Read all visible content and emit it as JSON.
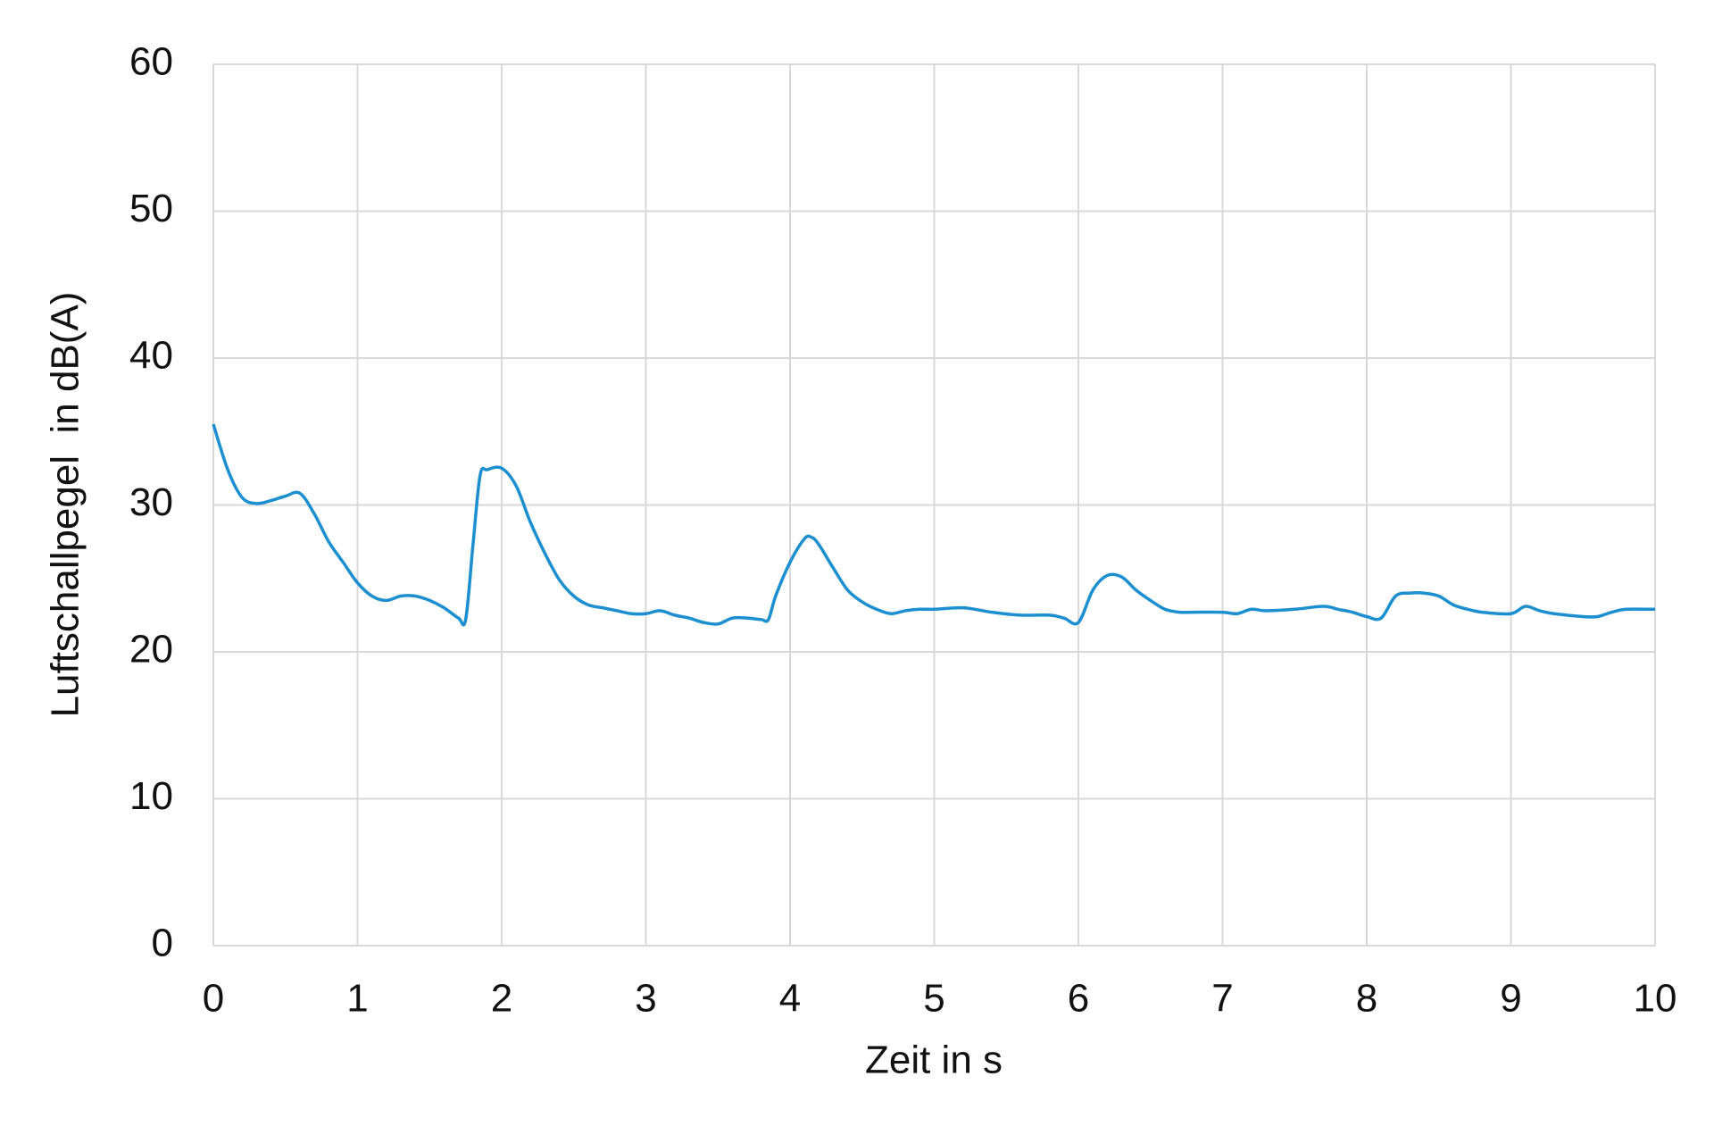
{
  "chart_data": {
    "type": "line",
    "x_label": "Zeit in s",
    "y_label": "Luftschallpegel  in dB(A)",
    "x": [
      0,
      0.1,
      0.2,
      0.3,
      0.4,
      0.5,
      0.6,
      0.7,
      0.8,
      0.9,
      1.0,
      1.1,
      1.2,
      1.3,
      1.4,
      1.5,
      1.6,
      1.7,
      1.75,
      1.8,
      1.85,
      1.9,
      2.0,
      2.1,
      2.2,
      2.3,
      2.4,
      2.5,
      2.6,
      2.7,
      2.8,
      2.9,
      3.0,
      3.1,
      3.2,
      3.3,
      3.4,
      3.5,
      3.6,
      3.7,
      3.8,
      3.85,
      3.9,
      4.0,
      4.1,
      4.15,
      4.2,
      4.3,
      4.4,
      4.5,
      4.6,
      4.7,
      4.8,
      4.9,
      5.0,
      5.2,
      5.4,
      5.6,
      5.8,
      5.9,
      6.0,
      6.1,
      6.2,
      6.3,
      6.4,
      6.5,
      6.6,
      6.7,
      6.8,
      7.0,
      7.1,
      7.2,
      7.3,
      7.5,
      7.7,
      7.8,
      7.9,
      8.0,
      8.1,
      8.2,
      8.3,
      8.4,
      8.5,
      8.6,
      8.7,
      8.8,
      9.0,
      9.1,
      9.2,
      9.3,
      9.5,
      9.6,
      9.7,
      9.8,
      10
    ],
    "series": [
      {
        "name": "Luftschallpegel",
        "color": "#1b8fd0",
        "values": [
          35.5,
          32.4,
          30.5,
          30.1,
          30.3,
          30.6,
          30.8,
          29.4,
          27.5,
          26.1,
          24.7,
          23.8,
          23.5,
          23.8,
          23.8,
          23.5,
          23.0,
          22.3,
          22.2,
          27.2,
          32.0,
          32.4,
          32.5,
          31.3,
          28.8,
          26.7,
          24.9,
          23.8,
          23.2,
          23.0,
          22.8,
          22.6,
          22.6,
          22.8,
          22.5,
          22.3,
          22.0,
          21.9,
          22.3,
          22.3,
          22.2,
          22.2,
          23.8,
          26.1,
          27.7,
          27.8,
          27.3,
          25.7,
          24.2,
          23.4,
          22.9,
          22.6,
          22.8,
          22.9,
          22.9,
          23.0,
          22.7,
          22.5,
          22.5,
          22.3,
          22.0,
          24.2,
          25.2,
          25.1,
          24.2,
          23.5,
          22.9,
          22.7,
          22.7,
          22.7,
          22.6,
          22.9,
          22.8,
          22.9,
          23.1,
          22.9,
          22.7,
          22.4,
          22.3,
          23.8,
          24.0,
          24.0,
          23.8,
          23.2,
          22.9,
          22.7,
          22.6,
          23.1,
          22.8,
          22.6,
          22.4,
          22.4,
          22.7,
          22.9,
          22.9
        ]
      }
    ],
    "xlim": [
      0,
      10
    ],
    "xticks": [
      0,
      1,
      2,
      3,
      4,
      5,
      6,
      7,
      8,
      9,
      10
    ],
    "ylim": [
      0,
      60
    ],
    "yticks": [
      0,
      10,
      20,
      30,
      40,
      50,
      60
    ],
    "grid": true
  }
}
